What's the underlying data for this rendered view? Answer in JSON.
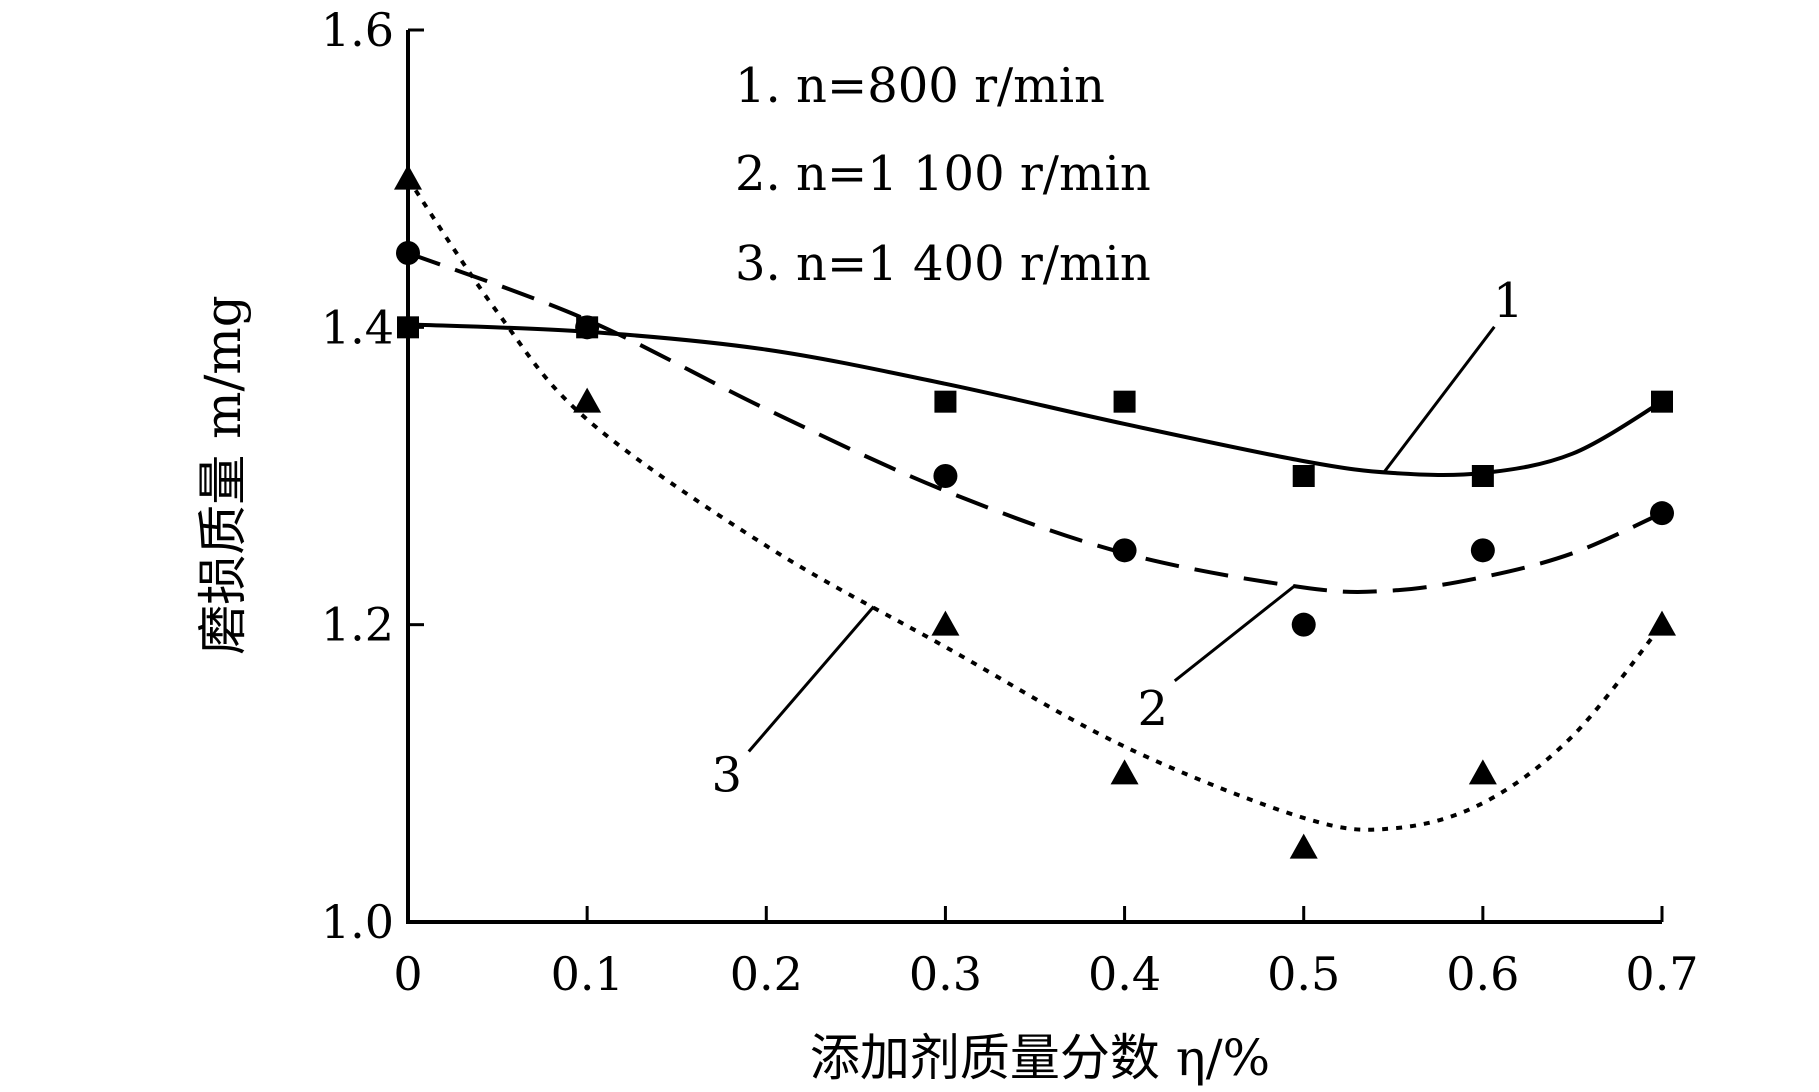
{
  "chart_data": {
    "type": "scatter",
    "title": "",
    "xlabel": "添加剂质量分数 η/%",
    "ylabel": "磨损质量 m/mg",
    "xlim": [
      0,
      0.7
    ],
    "ylim": [
      1.0,
      1.6
    ],
    "xticks": [
      0,
      0.1,
      0.2,
      0.3,
      0.4,
      0.5,
      0.6,
      0.7
    ],
    "xtick_labels": [
      "0",
      "0.1",
      "0.2",
      "0.3",
      "0.4",
      "0.5",
      "0.6",
      "0.7"
    ],
    "yticks": [
      1.0,
      1.2,
      1.4,
      1.6
    ],
    "ytick_labels": [
      "1.0",
      "1.2",
      "1.4",
      "1.6"
    ],
    "grid": false,
    "legend_position": "top",
    "legend": [
      "1. n=800 r/min",
      "2. n=1 100 r/min",
      "3. n=1 400 r/min"
    ],
    "series": [
      {
        "label": "1",
        "marker": "square",
        "line_style": "solid",
        "x": [
          0,
          0.1,
          0.3,
          0.4,
          0.5,
          0.6,
          0.7
        ],
        "y": [
          1.4,
          1.4,
          1.35,
          1.35,
          1.3,
          1.3,
          1.35
        ],
        "fit_x": [
          0,
          0.1,
          0.2,
          0.3,
          0.4,
          0.5,
          0.55,
          0.6,
          0.65,
          0.7
        ],
        "fit_y": [
          1.402,
          1.397,
          1.385,
          1.362,
          1.335,
          1.31,
          1.302,
          1.302,
          1.315,
          1.35
        ]
      },
      {
        "label": "2",
        "marker": "circle",
        "line_style": "dashed",
        "x": [
          0,
          0.1,
          0.3,
          0.4,
          0.5,
          0.6,
          0.7
        ],
        "y": [
          1.45,
          1.4,
          1.3,
          1.25,
          1.2,
          1.25,
          1.275
        ],
        "fit_x": [
          0,
          0.1,
          0.2,
          0.3,
          0.4,
          0.5,
          0.55,
          0.6,
          0.65,
          0.7
        ],
        "fit_y": [
          1.45,
          1.405,
          1.345,
          1.29,
          1.248,
          1.225,
          1.223,
          1.232,
          1.248,
          1.275
        ]
      },
      {
        "label": "3",
        "marker": "triangle",
        "line_style": "dotted",
        "x": [
          0,
          0.1,
          0.3,
          0.4,
          0.5,
          0.6,
          0.7
        ],
        "y": [
          1.5,
          1.35,
          1.2,
          1.1,
          1.05,
          1.1,
          1.2
        ],
        "fit_x": [
          0,
          0.05,
          0.1,
          0.2,
          0.3,
          0.4,
          0.5,
          0.55,
          0.6,
          0.65,
          0.7
        ],
        "fit_y": [
          1.5,
          1.41,
          1.338,
          1.253,
          1.185,
          1.118,
          1.07,
          1.063,
          1.08,
          1.125,
          1.2
        ]
      }
    ],
    "curve_labels": [
      {
        "text": "1",
        "series": 0,
        "at_x": 0.545
      },
      {
        "text": "2",
        "series": 1,
        "at_x": 0.495
      },
      {
        "text": "3",
        "series": 2,
        "at_x": 0.26
      }
    ]
  }
}
